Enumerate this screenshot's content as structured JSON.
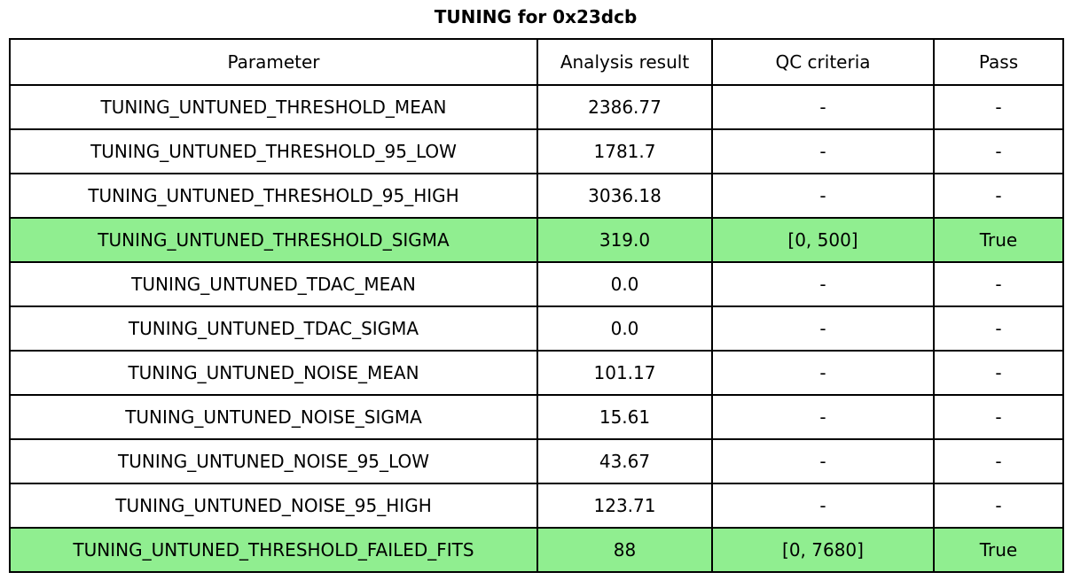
{
  "title": "TUNING for 0x23dcb",
  "colors": {
    "background": "#ffffff",
    "border": "#000000",
    "text": "#000000",
    "pass_row_bg": "#90ee90"
  },
  "table": {
    "columns": [
      "Parameter",
      "Analysis result",
      "QC criteria",
      "Pass"
    ],
    "rows": [
      {
        "parameter": "TUNING_UNTUNED_THRESHOLD_MEAN",
        "analysis_result": "2386.77",
        "qc_criteria": "-",
        "pass": "-",
        "highlight": false
      },
      {
        "parameter": "TUNING_UNTUNED_THRESHOLD_95_LOW",
        "analysis_result": "1781.7",
        "qc_criteria": "-",
        "pass": "-",
        "highlight": false
      },
      {
        "parameter": "TUNING_UNTUNED_THRESHOLD_95_HIGH",
        "analysis_result": "3036.18",
        "qc_criteria": "-",
        "pass": "-",
        "highlight": false
      },
      {
        "parameter": "TUNING_UNTUNED_THRESHOLD_SIGMA",
        "analysis_result": "319.0",
        "qc_criteria": "[0, 500]",
        "pass": "True",
        "highlight": true
      },
      {
        "parameter": "TUNING_UNTUNED_TDAC_MEAN",
        "analysis_result": "0.0",
        "qc_criteria": "-",
        "pass": "-",
        "highlight": false
      },
      {
        "parameter": "TUNING_UNTUNED_TDAC_SIGMA",
        "analysis_result": "0.0",
        "qc_criteria": "-",
        "pass": "-",
        "highlight": false
      },
      {
        "parameter": "TUNING_UNTUNED_NOISE_MEAN",
        "analysis_result": "101.17",
        "qc_criteria": "-",
        "pass": "-",
        "highlight": false
      },
      {
        "parameter": "TUNING_UNTUNED_NOISE_SIGMA",
        "analysis_result": "15.61",
        "qc_criteria": "-",
        "pass": "-",
        "highlight": false
      },
      {
        "parameter": "TUNING_UNTUNED_NOISE_95_LOW",
        "analysis_result": "43.67",
        "qc_criteria": "-",
        "pass": "-",
        "highlight": false
      },
      {
        "parameter": "TUNING_UNTUNED_NOISE_95_HIGH",
        "analysis_result": "123.71",
        "qc_criteria": "-",
        "pass": "-",
        "highlight": false
      },
      {
        "parameter": "TUNING_UNTUNED_THRESHOLD_FAILED_FITS",
        "analysis_result": "88",
        "qc_criteria": "[0, 7680]",
        "pass": "True",
        "highlight": true
      }
    ]
  }
}
